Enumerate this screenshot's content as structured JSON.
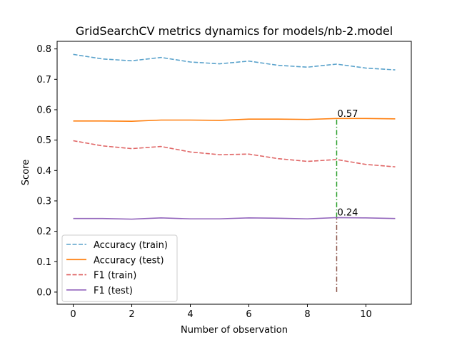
{
  "chart_data": {
    "type": "line",
    "title": "GridSearchCV metrics dynamics for models/nb-2.model",
    "xlabel": "Number of observation",
    "ylabel": "Score",
    "xlim": [
      -0.55,
      11.55
    ],
    "ylim": [
      -0.04,
      0.825
    ],
    "xticks": [
      0,
      2,
      4,
      6,
      8,
      10
    ],
    "yticks": [
      0.0,
      0.1,
      0.2,
      0.3,
      0.4,
      0.5,
      0.6,
      0.7,
      0.8
    ],
    "x": [
      0,
      1,
      2,
      3,
      4,
      5,
      6,
      7,
      8,
      9,
      10,
      11
    ],
    "series": [
      {
        "name": "Accuracy (train)",
        "color": "#5ba3cc",
        "dash": "dashed",
        "values": [
          0.782,
          0.767,
          0.761,
          0.772,
          0.757,
          0.751,
          0.76,
          0.746,
          0.74,
          0.75,
          0.737,
          0.731
        ]
      },
      {
        "name": "Accuracy (test)",
        "color": "#ff7f0e",
        "dash": "solid",
        "values": [
          0.563,
          0.563,
          0.562,
          0.566,
          0.566,
          0.565,
          0.569,
          0.569,
          0.568,
          0.571,
          0.571,
          0.57
        ]
      },
      {
        "name": "F1 (train)",
        "color": "#e06666",
        "dash": "dashed",
        "values": [
          0.498,
          0.481,
          0.472,
          0.479,
          0.461,
          0.452,
          0.454,
          0.439,
          0.43,
          0.436,
          0.42,
          0.412
        ]
      },
      {
        "name": "F1 (test)",
        "color": "#9467bd",
        "dash": "solid",
        "values": [
          0.242,
          0.242,
          0.24,
          0.244,
          0.241,
          0.241,
          0.244,
          0.243,
          0.241,
          0.245,
          0.244,
          0.242
        ]
      }
    ],
    "vlines": [
      {
        "x": 9,
        "y0": 0.245,
        "y1": 0.57,
        "color": "#2ca02c",
        "style": "dashdot"
      },
      {
        "x": 9,
        "y0": 0.0,
        "y1": 0.245,
        "color": "#8c564b",
        "style": "dashdot"
      }
    ],
    "annotations": [
      {
        "x": 9,
        "y": 0.57,
        "text": "0.57"
      },
      {
        "x": 9,
        "y": 0.245,
        "text": "0.24"
      }
    ],
    "legend": "lower-left",
    "grid": false
  }
}
